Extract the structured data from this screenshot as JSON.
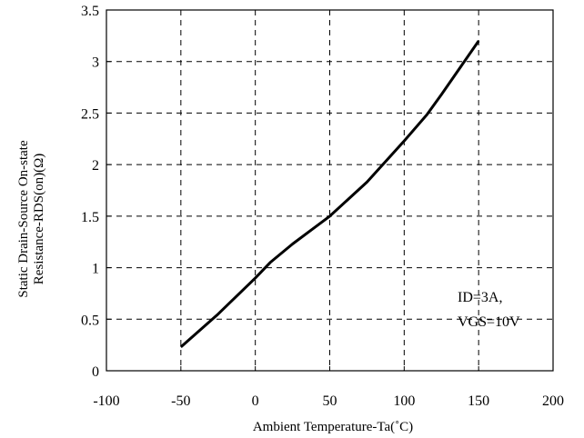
{
  "chart_data": {
    "type": "line",
    "xlabel": "Ambient Temperature-Ta(˚C)",
    "ylabel_line1": "Static Drain-Source On-state",
    "ylabel_line2": "Resistance-RDS(on)(Ω)",
    "xlim": [
      -100,
      200
    ],
    "ylim": [
      0,
      3.5
    ],
    "x_ticks": [
      -100,
      -50,
      0,
      50,
      100,
      150,
      200
    ],
    "y_ticks": [
      0,
      0.5,
      1,
      1.5,
      2,
      2.5,
      3,
      3.5
    ],
    "x_tick_labels": [
      "-100",
      "-50",
      "0",
      "50",
      "100",
      "150",
      "200"
    ],
    "y_tick_labels": [
      "0",
      "0.5",
      "1",
      "1.5",
      "2",
      "2.5",
      "3",
      "3.5"
    ],
    "grid": true,
    "annotation_line1": "ID=3A,",
    "annotation_line2": "VGS=10V",
    "series": [
      {
        "color": "#000000",
        "x": [
          -50,
          -25,
          0,
          10,
          25,
          50,
          75,
          100,
          115,
          125,
          150
        ],
        "y": [
          0.23,
          0.55,
          0.9,
          1.05,
          1.23,
          1.5,
          1.83,
          2.23,
          2.48,
          2.68,
          3.2
        ]
      }
    ]
  }
}
